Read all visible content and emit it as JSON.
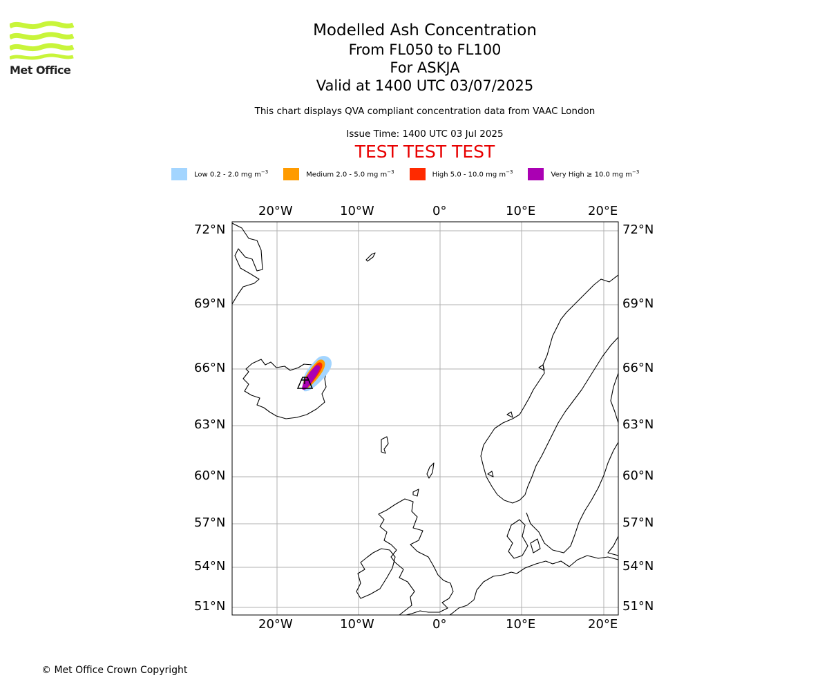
{
  "logo": {
    "text": "Met Office",
    "icon": "met-office-wave-logo",
    "color": "#c8f53a"
  },
  "title": {
    "main": "Modelled Ash Concentration",
    "levels": "From FL050 to FL100",
    "volcano": "For ASKJA",
    "valid": "Valid at 1400 UTC 03/07/2025",
    "note": "This chart displays QVA compliant concentration data from VAAC London",
    "issue": "Issue Time: 1400 UTC 03 Jul 2025",
    "test_banner": "TEST TEST TEST"
  },
  "legend": [
    {
      "label": "Low 0.2 - 2.0 mg m",
      "color": "#a3d5ff"
    },
    {
      "label": "Medium 2.0 - 5.0 mg m",
      "color": "#ff9b00"
    },
    {
      "label": "High 5.0 - 10.0 mg m",
      "color": "#ff2a00"
    },
    {
      "label": "Very High ≥ 10.0 mg m",
      "color": "#aa00b3"
    }
  ],
  "legend_unit_exp": "−3",
  "map": {
    "lon_ticks": [
      "20°W",
      "10°W",
      "0°",
      "10°E",
      "20°E"
    ],
    "lat_ticks": [
      "72°N",
      "69°N",
      "66°N",
      "63°N",
      "60°N",
      "57°N",
      "54°N",
      "51°N"
    ],
    "volcano_symbol": "volcano-marker"
  },
  "copyright": "© Met Office Crown Copyright"
}
